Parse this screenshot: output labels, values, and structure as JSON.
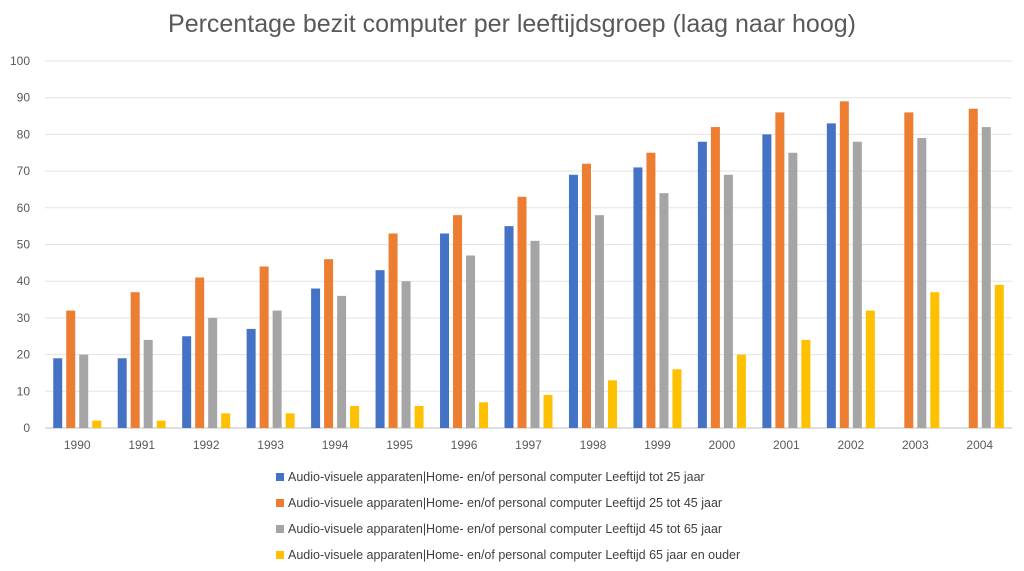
{
  "chart_data": {
    "type": "bar",
    "title": "Percentage bezit computer per leeftijdsgroep (laag naar hoog)",
    "xlabel": "",
    "ylabel": "",
    "ylim": [
      0,
      100
    ],
    "yticks": [
      0,
      10,
      20,
      30,
      40,
      50,
      60,
      70,
      80,
      90,
      100
    ],
    "grid": true,
    "legend_position": "bottom",
    "categories": [
      "1990",
      "1991",
      "1992",
      "1993",
      "1994",
      "1995",
      "1996",
      "1997",
      "1998",
      "1999",
      "2000",
      "2001",
      "2002",
      "2003",
      "2004"
    ],
    "series": [
      {
        "name": "Audio-visuele apparaten|Home- en/of personal computer Leeftijd tot 25 jaar",
        "color": "#4472C4",
        "values": [
          19,
          19,
          25,
          27,
          38,
          43,
          53,
          55,
          69,
          71,
          78,
          80,
          83,
          null,
          null
        ]
      },
      {
        "name": "Audio-visuele apparaten|Home- en/of personal computer Leeftijd 25 tot 45 jaar",
        "color": "#ED7D31",
        "values": [
          32,
          37,
          41,
          44,
          46,
          53,
          58,
          63,
          72,
          75,
          82,
          86,
          89,
          86,
          87
        ]
      },
      {
        "name": "Audio-visuele apparaten|Home- en/of personal computer Leeftijd 45 tot 65 jaar",
        "color": "#A5A5A5",
        "values": [
          20,
          24,
          30,
          32,
          36,
          40,
          47,
          51,
          58,
          64,
          69,
          75,
          78,
          79,
          82
        ]
      },
      {
        "name": "Audio-visuele apparaten|Home- en/of personal computer Leeftijd 65 jaar en ouder",
        "color": "#FFC000",
        "values": [
          2,
          2,
          4,
          4,
          6,
          6,
          7,
          9,
          13,
          16,
          20,
          24,
          32,
          37,
          39
        ]
      }
    ]
  }
}
